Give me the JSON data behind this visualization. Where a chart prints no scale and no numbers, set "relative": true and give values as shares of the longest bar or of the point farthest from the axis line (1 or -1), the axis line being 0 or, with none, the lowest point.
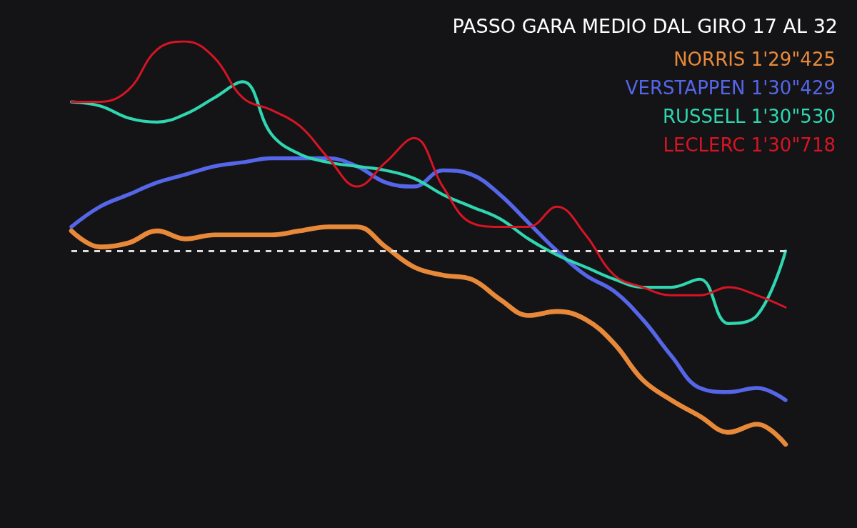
{
  "chart_data": {
    "type": "line",
    "title": "PASSO GARA MEDIO DAL GIRO 17 AL 32",
    "relative": true,
    "legend": "top right",
    "grid": false,
    "marker": "none",
    "line_style": "solid",
    "categories": [
      null,
      null,
      null,
      null,
      null,
      null,
      null,
      null,
      null,
      null,
      null,
      null,
      null,
      null,
      null,
      null,
      null,
      null,
      null,
      null,
      null,
      null,
      null,
      null,
      null,
      null
    ],
    "series": [
      {
        "name": "NORRIS 1'29\"425",
        "color": "#e8893a",
        "values": [
          0.53,
          0.49,
          0.5,
          0.53,
          0.51,
          0.52,
          0.52,
          0.52,
          0.53,
          0.54,
          0.54,
          0.49,
          0.44,
          0.42,
          0.41,
          0.36,
          0.32,
          0.33,
          0.31,
          0.25,
          0.16,
          0.11,
          0.07,
          0.03,
          0.05,
          0
        ]
      },
      {
        "name": "VERSTAPPEN 1'30\"429",
        "color": "#5566e8",
        "values": [
          0.54,
          0.59,
          0.62,
          0.65,
          0.67,
          0.69,
          0.7,
          0.71,
          0.71,
          0.71,
          0.69,
          0.65,
          0.64,
          0.68,
          0.67,
          0.62,
          0.55,
          0.48,
          0.42,
          0.38,
          0.31,
          0.22,
          0.14,
          0.13,
          0.14,
          0.11
        ]
      },
      {
        "name": "RUSSELL 1'30\"530",
        "color": "#2fd6b0",
        "values": [
          0.85,
          0.84,
          0.81,
          0.8,
          0.82,
          0.86,
          0.9,
          0.77,
          0.72,
          0.7,
          0.69,
          0.68,
          0.66,
          0.62,
          0.59,
          0.56,
          0.51,
          0.47,
          0.44,
          0.41,
          0.39,
          0.39,
          0.41,
          0.3,
          0.32,
          0.48
        ]
      },
      {
        "name": "LECLERC 1'30\"718",
        "color": "#d81424",
        "values": [
          0.85,
          0.85,
          0.88,
          0.98,
          1,
          0.96,
          0.86,
          0.83,
          0.79,
          0.71,
          0.64,
          0.7,
          0.76,
          0.64,
          0.55,
          0.54,
          0.54,
          0.59,
          0.52,
          0.42,
          0.39,
          0.37,
          0.37,
          0.39,
          0.37,
          0.34
        ]
      }
    ],
    "ref_lines": [
      {
        "axis": "y",
        "value": 0.48,
        "color": "#dddddd",
        "line_style": "dashed"
      }
    ]
  }
}
